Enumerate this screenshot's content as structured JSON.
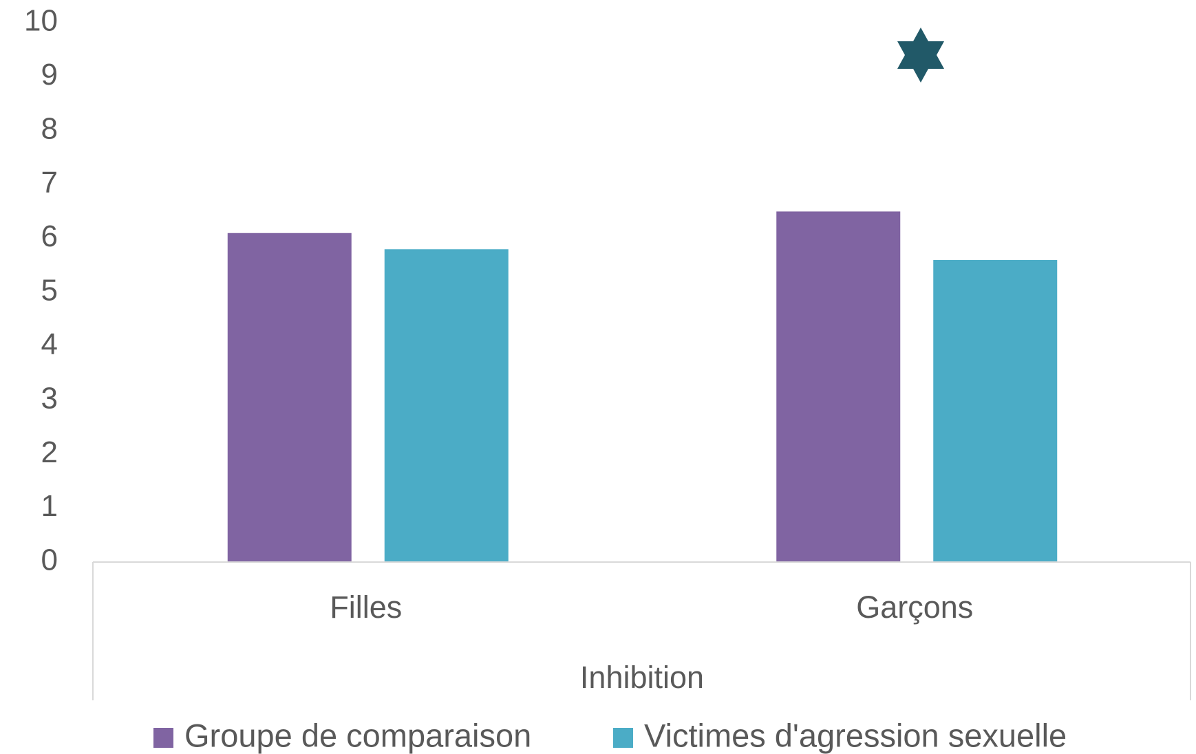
{
  "chart_data": {
    "type": "bar",
    "x_label": "Inhibition",
    "categories": [
      "Filles",
      "Garçons"
    ],
    "series": [
      {
        "name": "Groupe de comparaison",
        "color": "#8064a2",
        "values": [
          6.1,
          6.5
        ]
      },
      {
        "name": "Victimes d'agression sexuelle",
        "color": "#4bacc6",
        "values": [
          5.8,
          5.6
        ]
      }
    ],
    "ylim": [
      0,
      10
    ],
    "yticks": [
      0,
      1,
      2,
      3,
      4,
      5,
      6,
      7,
      8,
      9,
      10
    ],
    "grid": false
  }
}
